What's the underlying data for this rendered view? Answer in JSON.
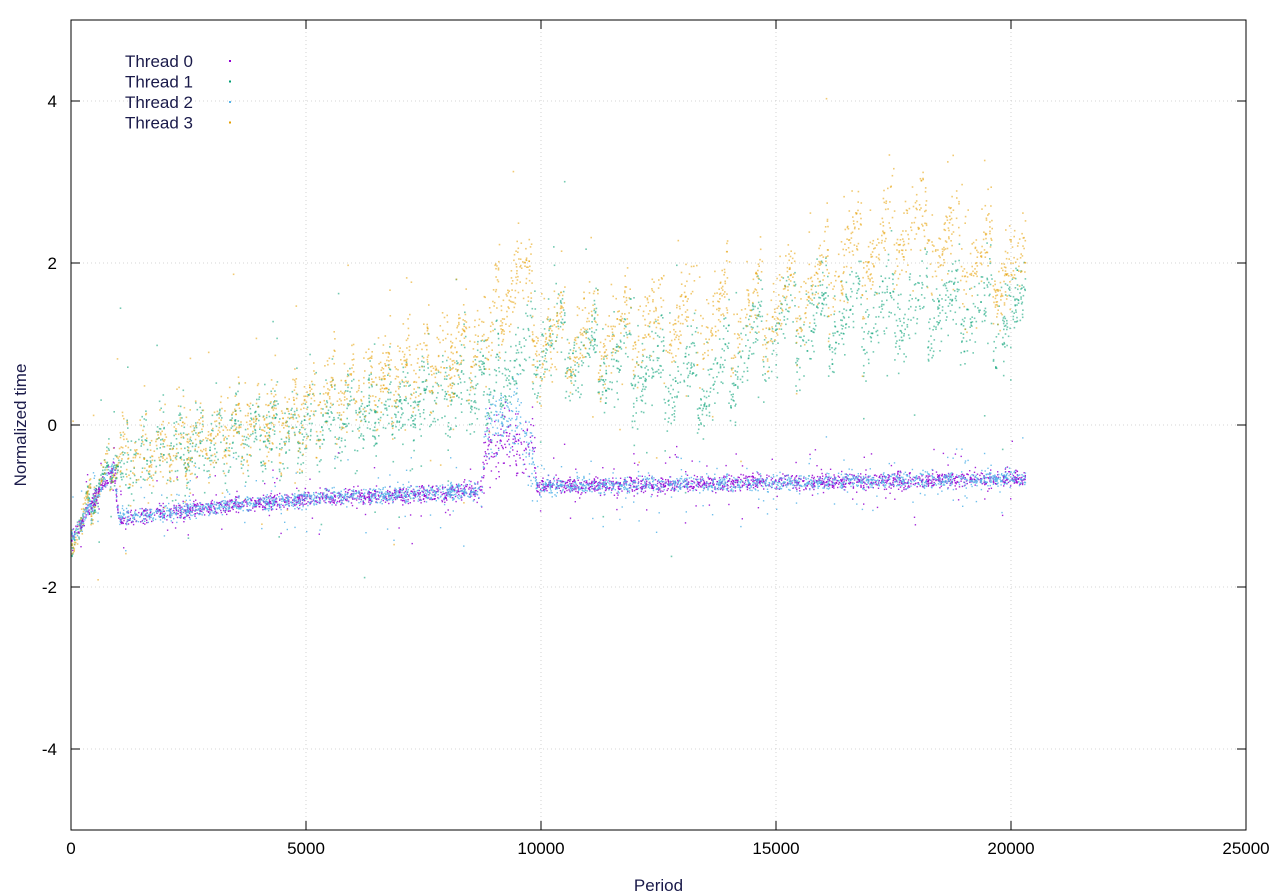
{
  "chart_data": {
    "type": "scatter",
    "title": "",
    "xlabel": "Period",
    "ylabel": "Normalized time",
    "xlim": [
      0,
      25000
    ],
    "ylim": [
      -5,
      5
    ],
    "xticks": [
      0,
      5000,
      10000,
      15000,
      20000,
      25000
    ],
    "yticks": [
      -4,
      -2,
      0,
      2,
      4
    ],
    "xtick_labels": [
      "0",
      "5000",
      "10000",
      "15000",
      "20000",
      "25000"
    ],
    "ytick_labels": [
      "-4",
      "-2",
      "0",
      "2",
      "4"
    ],
    "grid": true,
    "legend_position": "top-left",
    "series": [
      {
        "name": "Thread 0",
        "color": "#9400d3",
        "description_points": [
          [
            0,
            -1.4
          ],
          [
            500,
            -0.9
          ],
          [
            900,
            -0.5
          ],
          [
            1000,
            -1.15
          ],
          [
            3000,
            -1.0
          ],
          [
            5000,
            -0.9
          ],
          [
            8700,
            -0.8
          ],
          [
            8800,
            -0.2
          ],
          [
            9800,
            -0.2
          ],
          [
            9900,
            -0.75
          ],
          [
            15000,
            -0.7
          ],
          [
            20300,
            -0.65
          ]
        ]
      },
      {
        "name": "Thread 1",
        "color": "#009e73",
        "description_points": [
          [
            0,
            -1.4
          ],
          [
            800,
            -0.5
          ],
          [
            2000,
            -0.3
          ],
          [
            5000,
            0.0
          ],
          [
            8700,
            0.5
          ],
          [
            10000,
            1.0
          ],
          [
            13600,
            0.5
          ],
          [
            15000,
            1.2
          ],
          [
            18000,
            1.5
          ],
          [
            20300,
            1.3
          ]
        ]
      },
      {
        "name": "Thread 2",
        "color": "#56b4e9",
        "description_points": [
          [
            0,
            -1.4
          ],
          [
            500,
            -0.9
          ],
          [
            900,
            -0.5
          ],
          [
            1000,
            -1.15
          ],
          [
            3000,
            -1.0
          ],
          [
            5000,
            -0.9
          ],
          [
            8700,
            -0.8
          ],
          [
            8800,
            -0.1
          ],
          [
            9500,
            0.2
          ],
          [
            9900,
            -0.75
          ],
          [
            15000,
            -0.7
          ],
          [
            20300,
            -0.65
          ]
        ]
      },
      {
        "name": "Thread 3",
        "color": "#e69f00",
        "description_points": [
          [
            0,
            -1.4
          ],
          [
            800,
            -0.5
          ],
          [
            2000,
            -0.3
          ],
          [
            5000,
            0.2
          ],
          [
            8700,
            1.0
          ],
          [
            9500,
            2.0
          ],
          [
            10000,
            1.0
          ],
          [
            15000,
            1.5
          ],
          [
            17800,
            2.5
          ],
          [
            20300,
            1.8
          ]
        ]
      }
    ]
  }
}
